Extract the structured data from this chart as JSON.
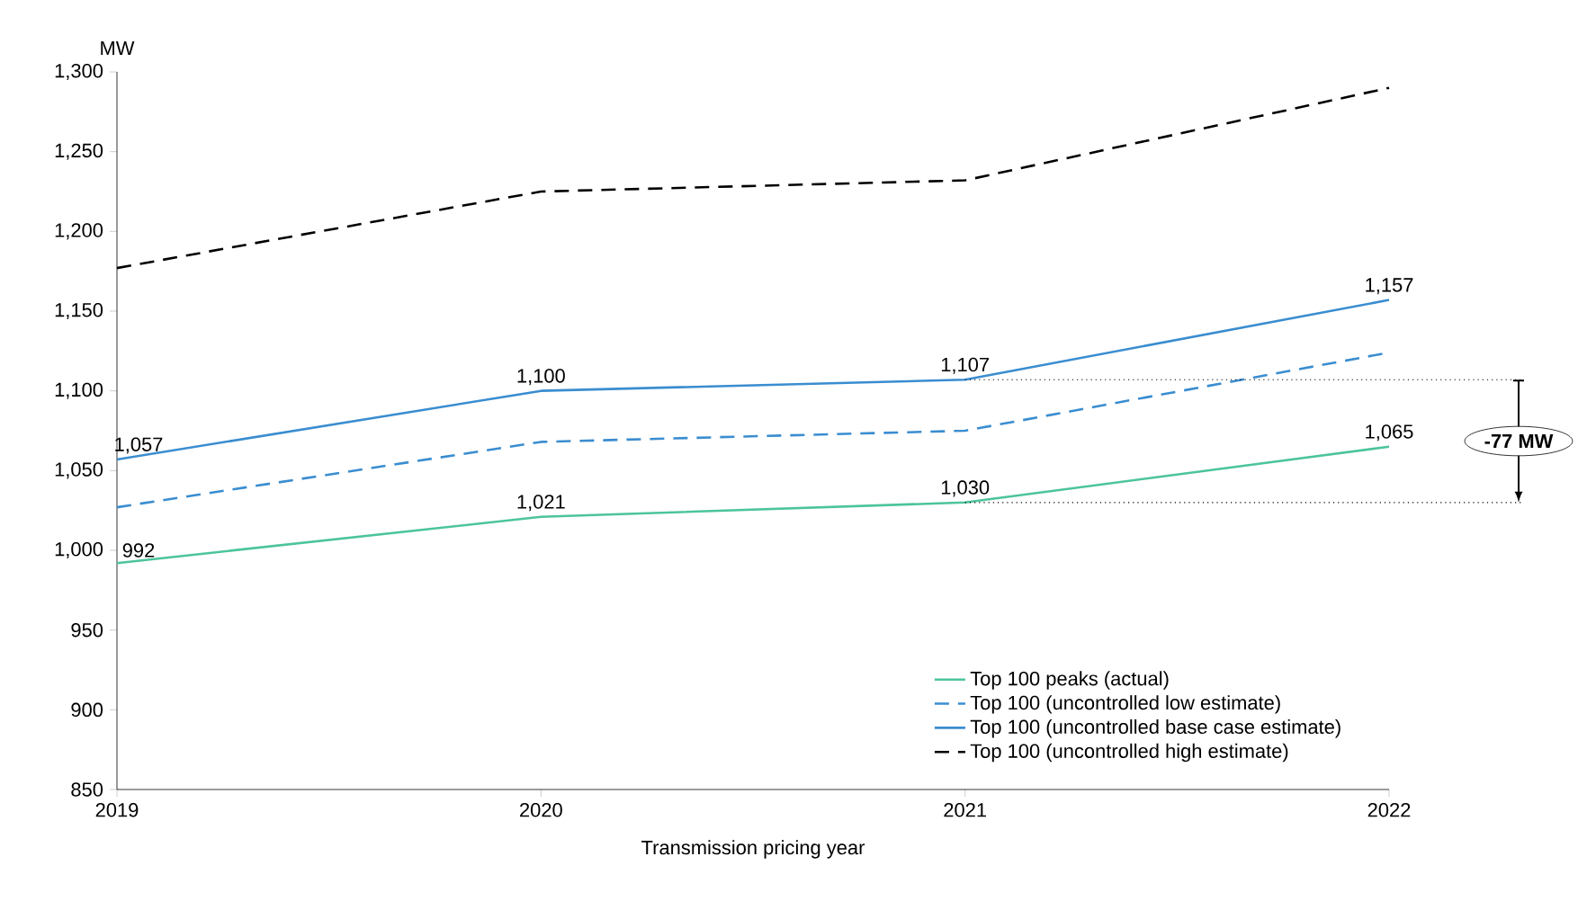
{
  "chart_data": {
    "type": "line",
    "ylabel": "MW",
    "xlabel": "Transmission pricing year",
    "x": [
      2019,
      2020,
      2021,
      2022
    ],
    "xlim": [
      2019,
      2022
    ],
    "xticks": [
      2019,
      2020,
      2021,
      2022
    ],
    "ylim": [
      850,
      1300
    ],
    "yticks": [
      {
        "value": 850,
        "label": "850"
      },
      {
        "value": 900,
        "label": "900"
      },
      {
        "value": 950,
        "label": "950"
      },
      {
        "value": 1000,
        "label": "1,000"
      },
      {
        "value": 1050,
        "label": "1,050"
      },
      {
        "value": 1100,
        "label": "1,100"
      },
      {
        "value": 1150,
        "label": "1,150"
      },
      {
        "value": 1200,
        "label": "1,200"
      },
      {
        "value": 1250,
        "label": "1,250"
      },
      {
        "value": 1300,
        "label": "1,300"
      }
    ],
    "marker": "none",
    "legend": "bottom right",
    "series": [
      {
        "name": "Top 100 peaks (actual)",
        "color": "#4cc49c",
        "line_style": "solid",
        "values": [
          992,
          1021,
          1030,
          1065
        ],
        "value_labels": [
          "992",
          "1,021",
          "1,030",
          "1,065"
        ]
      },
      {
        "name": "Top 100 (uncontrolled low estimate)",
        "color": "#3a8dd0",
        "line_style": "dashed",
        "values": [
          1027,
          1068,
          1075,
          1124
        ]
      },
      {
        "name": "Top 100 (uncontrolled base case estimate)",
        "color": "#3a8dd0",
        "line_style": "solid",
        "values": [
          1057,
          1100,
          1107,
          1157
        ],
        "value_labels": [
          "1,057",
          "1,100",
          "1,107",
          "1,157"
        ]
      },
      {
        "name": "Top 100 (uncontrolled high estimate)",
        "color": "#000000",
        "line_style": "dashed",
        "values": [
          1177,
          1225,
          1232,
          1290
        ]
      }
    ],
    "annotations": [
      "-77 MW"
    ]
  }
}
